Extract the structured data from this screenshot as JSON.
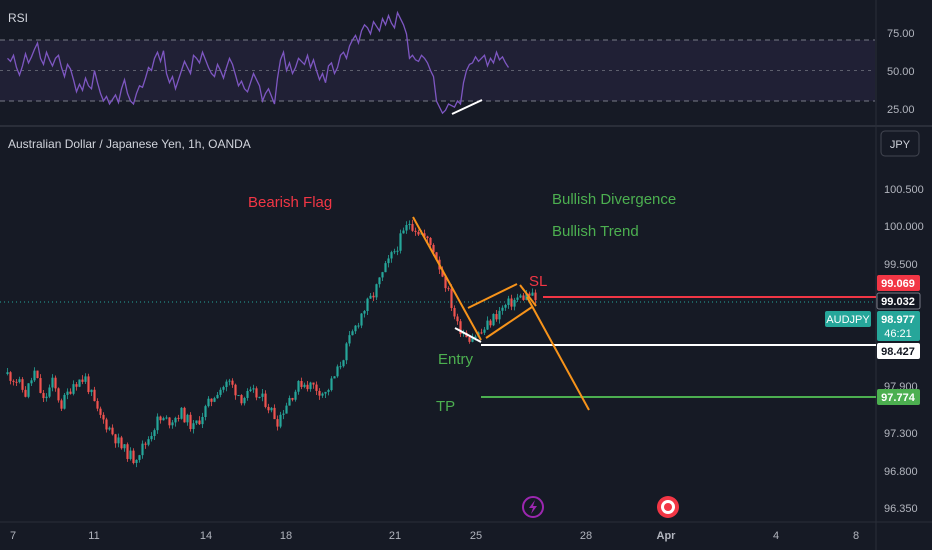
{
  "header": {
    "symbol_title": "Australian Dollar / Japanese Yen, 1h, OANDA",
    "currency_button": "JPY"
  },
  "rsi_panel": {
    "label": "RSI",
    "levels": [
      "75.00",
      "50.00",
      "25.00"
    ],
    "upper_band": 70,
    "lower_band": 30,
    "values": [
      58,
      56,
      60,
      52,
      47,
      53,
      61,
      55,
      59,
      64,
      68,
      58,
      54,
      62,
      57,
      53,
      58,
      60,
      52,
      46,
      54,
      51,
      44,
      36,
      41,
      37,
      45,
      40,
      38,
      50,
      42,
      35,
      30,
      33,
      28,
      31,
      34,
      29,
      38,
      44,
      35,
      30,
      28,
      35,
      40,
      39,
      45,
      52,
      50,
      58,
      62,
      56,
      63,
      48,
      42,
      46,
      38,
      44,
      50,
      56,
      52,
      48,
      60,
      58,
      55,
      62,
      57,
      52,
      48,
      46,
      54,
      50,
      45,
      52,
      58,
      54,
      47,
      40,
      43,
      38,
      36,
      42,
      48,
      44,
      40,
      30,
      35,
      38,
      33,
      28,
      45,
      57,
      62,
      50,
      55,
      48,
      52,
      58,
      56,
      54,
      60,
      52,
      57,
      50,
      44,
      48,
      42,
      53,
      55,
      48,
      52,
      60,
      62,
      58,
      66,
      70,
      73,
      68,
      76,
      80,
      78,
      74,
      82,
      79,
      76,
      84,
      80,
      86,
      81,
      78,
      88,
      84,
      80,
      74,
      58,
      60,
      57,
      56,
      60,
      58,
      55,
      50,
      46,
      30,
      26,
      22,
      24,
      28,
      27,
      26,
      30,
      28,
      42,
      50,
      54,
      55,
      59,
      56,
      58,
      60,
      53,
      58,
      55,
      62,
      57,
      59,
      55,
      52
    ]
  },
  "overlay": {
    "bearish_flag": "Bearish Flag",
    "bullish_divergence": "Bullish Divergence",
    "bullish_trend": "Bullish Trend",
    "sl": "SL",
    "entry": "Entry",
    "tp": "TP"
  },
  "badges": {
    "sl_price": "99.069",
    "last_price": "99.032",
    "symbol": "AUDJPY",
    "bid_price": "98.977",
    "countdown": "46:21",
    "entry_price": "98.427",
    "tp_price": "97.774"
  },
  "colors": {
    "background": "#161a25",
    "up": "#26a69a",
    "down": "#ef5350",
    "rsi_line": "#7e57c2",
    "pattern_orange": "#f7931a",
    "sl_red": "#f23645",
    "tp_green": "#4caf50"
  },
  "chart_data": {
    "type": "candlestick",
    "price_axis_ticks": [
      "100.500",
      "100.000",
      "99.500",
      "97.900",
      "97.300",
      "96.800",
      "96.350"
    ],
    "x_ticks": [
      "7",
      "11",
      "14",
      "18",
      "21",
      "25",
      "28",
      "Apr",
      "4",
      "8"
    ],
    "levels": {
      "sl": 99.069,
      "last": 99.032,
      "bid": 98.977,
      "entry": 98.427,
      "tp": 97.774
    },
    "close_path": [
      [
        0,
        98.06
      ],
      [
        3,
        97.98
      ],
      [
        6,
        97.8
      ],
      [
        9,
        98.08
      ],
      [
        12,
        97.7
      ],
      [
        15,
        97.95
      ],
      [
        18,
        97.65
      ],
      [
        22,
        97.95
      ],
      [
        26,
        98.0
      ],
      [
        30,
        97.55
      ],
      [
        34,
        97.35
      ],
      [
        38,
        97.1
      ],
      [
        42,
        96.95
      ],
      [
        46,
        97.15
      ],
      [
        50,
        97.45
      ],
      [
        54,
        97.45
      ],
      [
        58,
        97.55
      ],
      [
        62,
        97.35
      ],
      [
        66,
        97.6
      ],
      [
        70,
        97.85
      ],
      [
        74,
        97.95
      ],
      [
        78,
        97.75
      ],
      [
        82,
        97.8
      ],
      [
        86,
        97.7
      ],
      [
        90,
        97.45
      ],
      [
        94,
        97.75
      ],
      [
        98,
        97.95
      ],
      [
        102,
        97.9
      ],
      [
        106,
        97.8
      ],
      [
        110,
        98.1
      ],
      [
        114,
        98.5
      ],
      [
        118,
        98.85
      ],
      [
        122,
        99.1
      ],
      [
        126,
        99.45
      ],
      [
        130,
        99.75
      ],
      [
        134,
        100.05
      ],
      [
        138,
        99.9
      ],
      [
        142,
        99.7
      ],
      [
        146,
        99.25
      ],
      [
        150,
        98.7
      ],
      [
        154,
        98.55
      ],
      [
        158,
        98.6
      ],
      [
        162,
        98.8
      ],
      [
        166,
        98.95
      ],
      [
        170,
        99.05
      ],
      [
        174,
        99.1
      ],
      [
        176,
        99.03
      ]
    ]
  }
}
